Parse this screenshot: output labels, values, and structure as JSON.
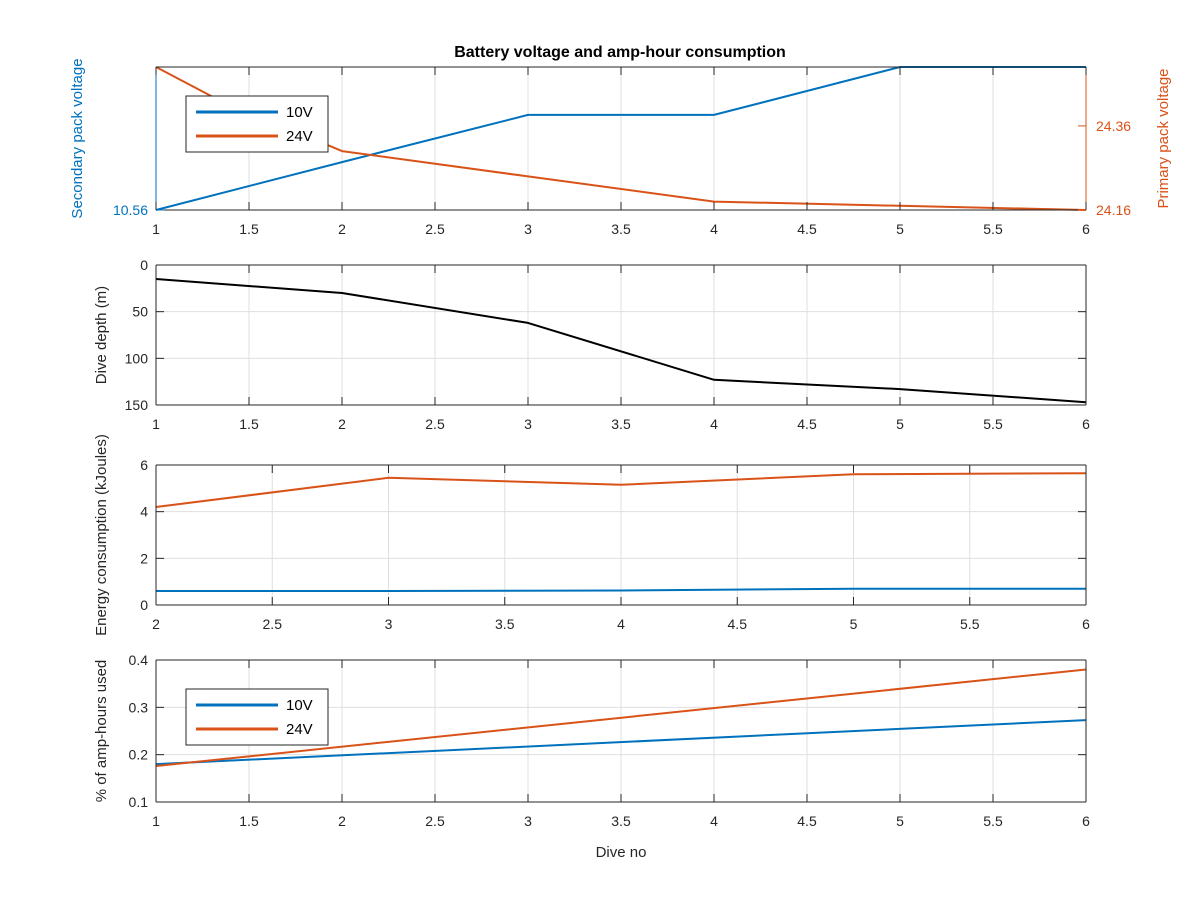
{
  "figure_title": "Battery voltage and amp-hour consumption",
  "colors": {
    "blue": "#0072BD",
    "orange": "#D95319",
    "black": "#000000",
    "axis": "#262626",
    "grid": "#dfdfdf"
  },
  "chart_data": [
    {
      "type": "line",
      "title": "Battery voltage and amp-hour consumption",
      "xlabel": "",
      "ylabel": "Secondary pack voltage",
      "ylabel_right": "Primary pack voltage",
      "xlim": [
        1,
        6
      ],
      "xticks": [
        "1",
        "1.5",
        "2",
        "2.5",
        "3",
        "3.5",
        "4",
        "4.5",
        "5",
        "5.5",
        "6"
      ],
      "ylim_left": [
        10.56,
        10.76
      ],
      "yticks_left": [
        "10.56"
      ],
      "ylim_right": [
        24.16,
        24.5
      ],
      "yticks_right": [
        "24.16",
        "24.36"
      ],
      "legend": {
        "entries": [
          "10V",
          "24V"
        ],
        "position": "top-left"
      },
      "grid": true,
      "series": [
        {
          "name": "10V",
          "axis": "left",
          "x": [
            1,
            2,
            3,
            4,
            5,
            6
          ],
          "values": [
            10.56,
            10.627,
            10.693,
            10.693,
            10.76,
            10.76
          ]
        },
        {
          "name": "24V",
          "axis": "right",
          "x": [
            1,
            1.3,
            2,
            3,
            4,
            5,
            6
          ],
          "values": [
            24.5,
            24.43,
            24.3,
            24.24,
            24.18,
            24.17,
            24.16
          ]
        }
      ]
    },
    {
      "type": "line",
      "xlabel": "",
      "ylabel": "Dive depth (m)",
      "xlim": [
        1,
        6
      ],
      "xticks": [
        "1",
        "1.5",
        "2",
        "2.5",
        "3",
        "3.5",
        "4",
        "4.5",
        "5",
        "5.5",
        "6"
      ],
      "ylim": [
        0,
        150
      ],
      "yreversed": true,
      "yticks": [
        "0",
        "50",
        "100",
        "150"
      ],
      "grid": true,
      "series": [
        {
          "x": [
            1,
            2,
            3,
            4,
            5,
            6
          ],
          "values": [
            15,
            30,
            62,
            123,
            133,
            147
          ]
        }
      ]
    },
    {
      "type": "line",
      "xlabel": "",
      "ylabel": "Energy consumption (kJoules)",
      "xlim": [
        2,
        6
      ],
      "xticks": [
        "2",
        "2.5",
        "3",
        "3.5",
        "4",
        "4.5",
        "5",
        "5.5",
        "6"
      ],
      "ylim": [
        0,
        6
      ],
      "yticks": [
        "0",
        "2",
        "4",
        "6"
      ],
      "grid": true,
      "series": [
        {
          "x": [
            2,
            3,
            4,
            5,
            6
          ],
          "values": [
            0.6,
            0.6,
            0.62,
            0.7,
            0.7
          ]
        },
        {
          "x": [
            2,
            3,
            4,
            5,
            6
          ],
          "values": [
            4.2,
            5.45,
            5.15,
            5.6,
            5.65
          ]
        }
      ]
    },
    {
      "type": "line",
      "xlabel": "Dive no",
      "ylabel": "% of amp-hours used",
      "xlim": [
        1,
        6
      ],
      "xticks": [
        "1",
        "1.5",
        "2",
        "2.5",
        "3",
        "3.5",
        "4",
        "4.5",
        "5",
        "5.5",
        "6"
      ],
      "ylim": [
        0.1,
        0.4
      ],
      "yticks": [
        "0.1",
        "0.2",
        "0.3",
        "0.4"
      ],
      "legend": {
        "entries": [
          "10V",
          "24V"
        ],
        "position": "left"
      },
      "grid": true,
      "series": [
        {
          "name": "10V",
          "x": [
            1,
            6
          ],
          "values": [
            0.18,
            0.273
          ]
        },
        {
          "name": "24V",
          "x": [
            1,
            6
          ],
          "values": [
            0.176,
            0.38
          ]
        }
      ]
    }
  ]
}
